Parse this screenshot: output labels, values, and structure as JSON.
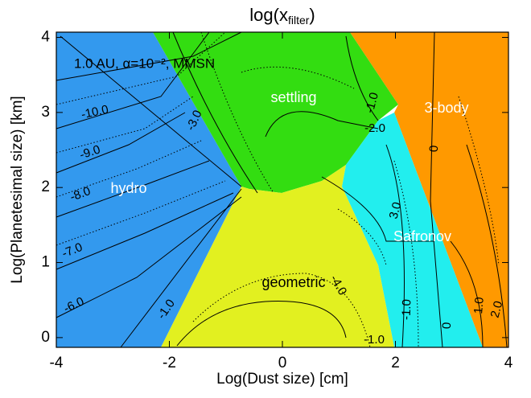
{
  "chart_data": {
    "type": "contour",
    "title": {
      "text": "log(x",
      "subscript": "filter",
      "closing": ")"
    },
    "annotation": "1.0 AU, α=10⁻², MMSN",
    "x_label": "Log(Dust size) [cm]",
    "y_label": "Log(Planetesimal size) [km]",
    "xlim": [
      -4,
      4
    ],
    "ylim": [
      -0.13,
      4.07
    ],
    "xticks": [
      -4,
      -2,
      0,
      2,
      4
    ],
    "yticks": [
      0,
      1,
      2,
      3,
      4
    ],
    "regions": [
      {
        "label": "hydro",
        "color": "#3399ee"
      },
      {
        "label": "settling",
        "color": "#33dd11"
      },
      {
        "label": "3-body",
        "color": "#ff9900"
      },
      {
        "label": "Safronov",
        "color": "#22eeee"
      },
      {
        "label": "geometric",
        "color": "#e2f020"
      }
    ],
    "contour_labels": [
      "-10.0",
      "-9.0",
      "-8.0",
      "-7.0",
      "-6.0",
      "-3.0",
      "-1.0",
      "-2.0",
      "0",
      "3.0",
      "-1.0",
      "-1.0",
      "0",
      "-1.0",
      "1.0",
      "2.0",
      "-4.0"
    ]
  }
}
